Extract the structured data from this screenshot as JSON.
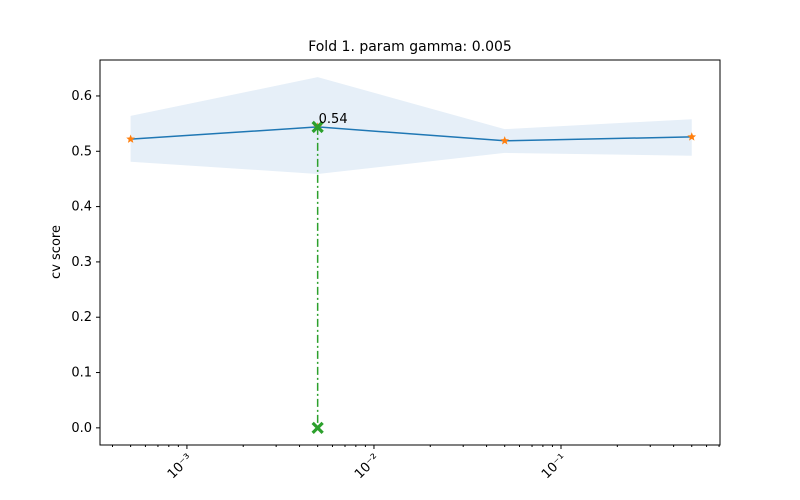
{
  "chart_data": {
    "type": "line",
    "title": "Fold 1. param gamma: 0.005",
    "y_label": "cv score",
    "x": [
      0.0005,
      0.005,
      0.05,
      0.5
    ],
    "values": [
      0.522,
      0.544,
      0.519,
      0.526
    ],
    "band_upper": [
      0.564,
      0.634,
      0.54,
      0.558
    ],
    "band_lower": [
      0.481,
      0.459,
      0.497,
      0.492
    ],
    "color": "#1f77b4",
    "marker_color": "#ff7f0e",
    "band_color": "#e6eff8",
    "best": {
      "x": 0.005,
      "y": 0.544,
      "baseline": 0,
      "label": "0.54",
      "color": "#2ca02c"
    },
    "xscale": "log",
    "xlim": [
      0.000343,
      0.708
    ],
    "ylim": [
      -0.031,
      0.665
    ],
    "xticks": [
      {
        "value": 0.001,
        "label": "10⁻³"
      },
      {
        "value": 0.01,
        "label": "10⁻²"
      },
      {
        "value": 0.1,
        "label": "10⁻¹"
      }
    ],
    "xminorticks": [
      0.0004,
      0.0005,
      0.0006,
      0.0007,
      0.0008,
      0.0009,
      0.002,
      0.003,
      0.004,
      0.005,
      0.006,
      0.007,
      0.008,
      0.009,
      0.02,
      0.03,
      0.04,
      0.05,
      0.06,
      0.07,
      0.08,
      0.09,
      0.2,
      0.3,
      0.4,
      0.5,
      0.6,
      0.7
    ],
    "yticks": [
      {
        "value": 0,
        "label": "0.0"
      },
      0.1,
      0.2,
      0.3,
      0.4,
      0.5,
      0.6
    ]
  }
}
